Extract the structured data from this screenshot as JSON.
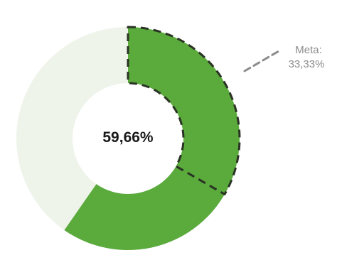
{
  "chart_data": {
    "type": "donut",
    "value_percent": 59.66,
    "center_label": "59,66%",
    "target": {
      "label": "Meta:",
      "value_label": "33,33%",
      "value_percent": 33.33
    },
    "colors": {
      "value": "#5aaa3c",
      "track": "#eef4ea",
      "target_outline": "#2a3324",
      "target_pointer": "#8c8c8c",
      "center_text": "#1a1a1a",
      "target_text": "#8c8c8c"
    }
  }
}
